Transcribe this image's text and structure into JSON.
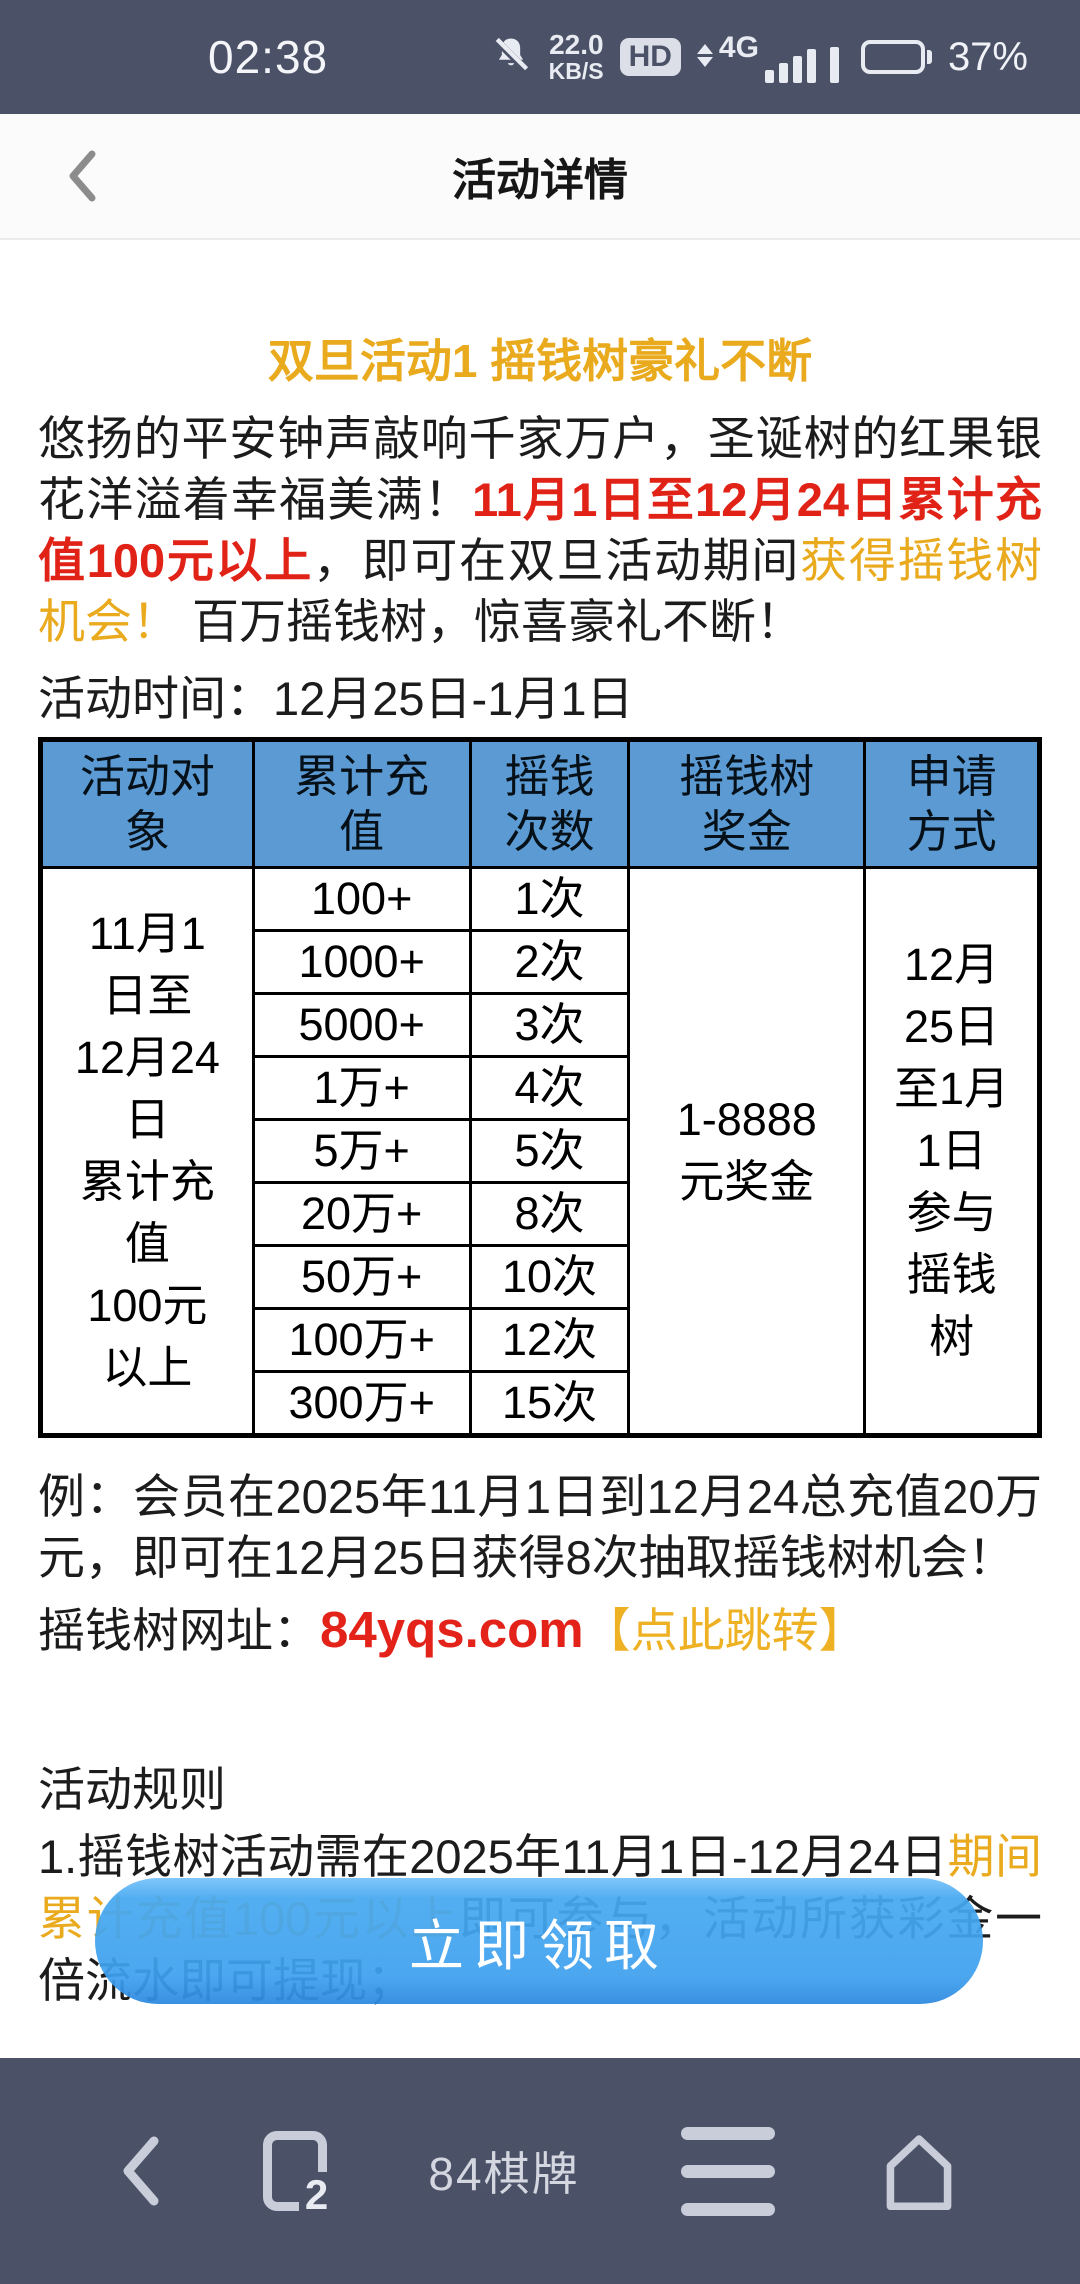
{
  "status_bar": {
    "time": "02:38",
    "speed_value": "22.0",
    "speed_unit": "KB/S",
    "hd_badge": "HD",
    "network": "4G",
    "battery_percent": "37%"
  },
  "header": {
    "title": "活动详情"
  },
  "promo": {
    "title": "双旦活动1 摇钱树豪礼不断",
    "intro_part1": "悠扬的平安钟声敲响千家万户，圣诞树的红果银花洋溢着幸福美满！",
    "intro_red": "11月1日至12月24日累计充值100元以上",
    "intro_part2": "，即可在双旦活动期间",
    "intro_gold": "获得摇钱树机会！",
    "intro_part3": " 百万摇钱树，惊喜豪礼不断！",
    "time_line": "活动时间：12月25日-1月1日"
  },
  "table": {
    "headers": [
      "活动对\n象",
      "累计充\n值",
      "摇钱\n次数",
      "摇钱树\n奖金",
      "申请\n方式"
    ],
    "target": "11月1\n日至\n12月24\n日\n累计充\n值\n100元\n以上",
    "rows": [
      {
        "recharge": "100+",
        "times": "1次"
      },
      {
        "recharge": "1000+",
        "times": "2次"
      },
      {
        "recharge": "5000+",
        "times": "3次"
      },
      {
        "recharge": "1万+",
        "times": "4次"
      },
      {
        "recharge": "5万+",
        "times": "5次"
      },
      {
        "recharge": "20万+",
        "times": "8次"
      },
      {
        "recharge": "50万+",
        "times": "10次"
      },
      {
        "recharge": "100万+",
        "times": "12次"
      },
      {
        "recharge": "300万+",
        "times": "15次"
      }
    ],
    "prize": "1-8888\n元奖金",
    "apply": "12月\n25日\n至1月\n1日\n参与\n摇钱\n树"
  },
  "example": "例：会员在2025年11月1日到12月24总充值20万元，即可在12月25日获得8次抽取摇钱树机会！",
  "website": {
    "label": "摇钱树网址：",
    "url": "84yqs.com",
    "link": "【点此跳转】"
  },
  "rules": {
    "title": "活动规则",
    "rule1_part1": "1.摇钱树活动需在2025年11月1日-12月24日",
    "rule1_gold": "期间累计充值100元以上",
    "rule1_part2": "即可参与，活动所获彩金一倍流水即可提现；"
  },
  "claim_button": {
    "label": "立即领取"
  },
  "bottom_nav": {
    "site_title": "84棋牌",
    "tab_count": "2"
  },
  "icons": {
    "status": [
      "notifications-off-icon",
      "hd-icon",
      "updown-arrows-icon",
      "signal-bars-icon",
      "battery-icon"
    ],
    "header": [
      "back-chevron-icon"
    ],
    "nav": [
      "back-chevron-icon",
      "tabs-icon",
      "menu-icon",
      "home-icon"
    ]
  },
  "colors": {
    "statusbar_bg": "#4b5167",
    "nav_bg": "#4b5167",
    "nav_icon": "#c9cdd9",
    "accent_gold": "#e9aa1e",
    "accent_red": "#e02217",
    "table_header_blue": "#5b9ad2",
    "button_blue": "#42a4ee"
  }
}
